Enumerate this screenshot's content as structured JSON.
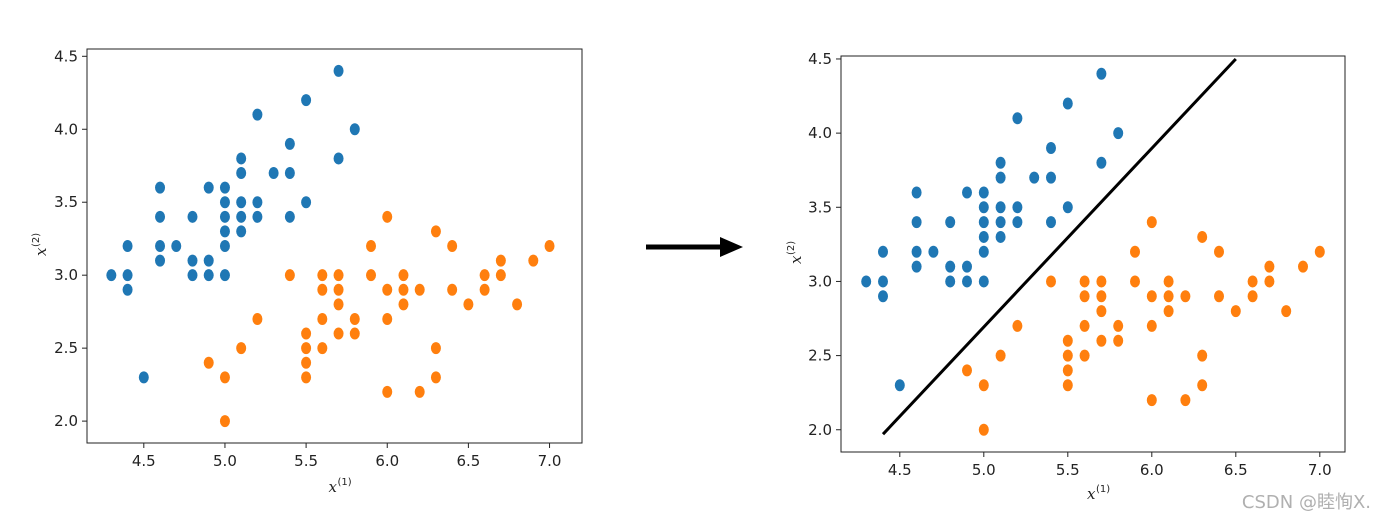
{
  "colors": {
    "setosa": "#1f77b4",
    "versicolor": "#ff7f0e",
    "boundary": "#000000",
    "arrow": "#000000"
  },
  "watermark": "CSDN @睦恂X.",
  "arrow": {
    "icon": "right-arrow-icon"
  },
  "points": {
    "blue": [
      [
        4.3,
        3.0
      ],
      [
        4.4,
        3.2
      ],
      [
        4.4,
        3.0
      ],
      [
        4.4,
        2.9
      ],
      [
        4.5,
        2.3
      ],
      [
        4.6,
        3.6
      ],
      [
        4.6,
        3.4
      ],
      [
        4.6,
        3.2
      ],
      [
        4.6,
        3.1
      ],
      [
        4.7,
        3.2
      ],
      [
        4.8,
        3.4
      ],
      [
        4.8,
        3.1
      ],
      [
        4.8,
        3.0
      ],
      [
        4.9,
        3.6
      ],
      [
        4.9,
        3.1
      ],
      [
        4.9,
        3.0
      ],
      [
        5.0,
        3.6
      ],
      [
        5.0,
        3.5
      ],
      [
        5.0,
        3.4
      ],
      [
        5.0,
        3.3
      ],
      [
        5.0,
        3.2
      ],
      [
        5.0,
        3.0
      ],
      [
        5.1,
        3.8
      ],
      [
        5.1,
        3.7
      ],
      [
        5.1,
        3.5
      ],
      [
        5.1,
        3.4
      ],
      [
        5.1,
        3.3
      ],
      [
        5.2,
        4.1
      ],
      [
        5.2,
        3.5
      ],
      [
        5.2,
        3.4
      ],
      [
        5.3,
        3.7
      ],
      [
        5.4,
        3.9
      ],
      [
        5.4,
        3.7
      ],
      [
        5.4,
        3.4
      ],
      [
        5.5,
        4.2
      ],
      [
        5.5,
        3.5
      ],
      [
        5.7,
        4.4
      ],
      [
        5.7,
        3.8
      ],
      [
        5.8,
        4.0
      ]
    ],
    "orange": [
      [
        4.9,
        2.4
      ],
      [
        5.0,
        2.3
      ],
      [
        5.0,
        2.0
      ],
      [
        5.1,
        2.5
      ],
      [
        5.2,
        2.7
      ],
      [
        5.4,
        3.0
      ],
      [
        5.5,
        2.6
      ],
      [
        5.5,
        2.5
      ],
      [
        5.5,
        2.4
      ],
      [
        5.5,
        2.3
      ],
      [
        5.6,
        3.0
      ],
      [
        5.6,
        2.9
      ],
      [
        5.6,
        2.7
      ],
      [
        5.6,
        2.5
      ],
      [
        5.7,
        3.0
      ],
      [
        5.7,
        2.9
      ],
      [
        5.7,
        2.8
      ],
      [
        5.7,
        2.6
      ],
      [
        5.8,
        2.7
      ],
      [
        5.8,
        2.6
      ],
      [
        5.9,
        3.2
      ],
      [
        5.9,
        3.0
      ],
      [
        6.0,
        3.4
      ],
      [
        6.0,
        2.9
      ],
      [
        6.0,
        2.7
      ],
      [
        6.0,
        2.2
      ],
      [
        6.1,
        3.0
      ],
      [
        6.1,
        2.9
      ],
      [
        6.1,
        2.8
      ],
      [
        6.2,
        2.9
      ],
      [
        6.2,
        2.2
      ],
      [
        6.3,
        3.3
      ],
      [
        6.3,
        2.5
      ],
      [
        6.3,
        2.3
      ],
      [
        6.4,
        3.2
      ],
      [
        6.4,
        2.9
      ],
      [
        6.5,
        2.8
      ],
      [
        6.6,
        3.0
      ],
      [
        6.6,
        2.9
      ],
      [
        6.7,
        3.1
      ],
      [
        6.7,
        3.0
      ],
      [
        6.8,
        2.8
      ],
      [
        6.9,
        3.1
      ],
      [
        7.0,
        3.2
      ]
    ]
  },
  "chart_data": [
    {
      "type": "scatter",
      "xlabel": "x",
      "xlabel_sup": "(1)",
      "ylabel": "x",
      "ylabel_sup": "(2)",
      "xlim": [
        4.15,
        7.2
      ],
      "ylim": [
        1.85,
        4.55
      ],
      "xticks": [
        "4.5",
        "5.0",
        "5.5",
        "6.0",
        "6.5",
        "7.0"
      ],
      "yticks": [
        "2.0",
        "2.5",
        "3.0",
        "3.5",
        "4.0",
        "4.5"
      ],
      "series_refs": [
        "blue",
        "orange"
      ]
    },
    {
      "type": "scatter",
      "xlabel": "x",
      "xlabel_sup": "(1)",
      "ylabel": "x",
      "ylabel_sup": "(2)",
      "xlim": [
        4.15,
        7.15
      ],
      "ylim": [
        1.85,
        4.52
      ],
      "xticks": [
        "4.5",
        "5.0",
        "5.5",
        "6.0",
        "6.5",
        "7.0"
      ],
      "yticks": [
        "2.0",
        "2.5",
        "3.0",
        "3.5",
        "4.0",
        "4.5"
      ],
      "series_refs": [
        "blue",
        "orange"
      ],
      "decision_line": [
        [
          4.4,
          1.97
        ],
        [
          6.5,
          4.5
        ]
      ]
    }
  ]
}
